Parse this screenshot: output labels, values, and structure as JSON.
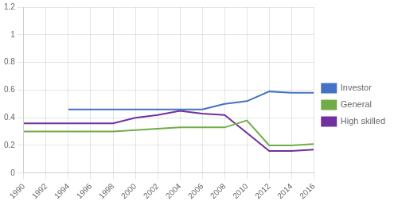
{
  "chart_data": {
    "type": "line",
    "x": [
      1990,
      1992,
      1994,
      1996,
      1998,
      2000,
      2002,
      2004,
      2006,
      2008,
      2010,
      2012,
      2014,
      2016
    ],
    "series": [
      {
        "name": "Investor",
        "color": "#4472C4",
        "values": [
          null,
          null,
          0.46,
          0.46,
          0.46,
          0.46,
          0.46,
          0.46,
          0.46,
          0.5,
          0.52,
          0.59,
          0.58,
          0.58
        ]
      },
      {
        "name": "General",
        "color": "#70AD47",
        "values": [
          0.3,
          0.3,
          0.3,
          0.3,
          0.3,
          0.31,
          0.32,
          0.33,
          0.33,
          0.33,
          0.38,
          0.2,
          0.2,
          0.21
        ]
      },
      {
        "name": "High skilled",
        "color": "#7030A0",
        "values": [
          0.36,
          0.36,
          0.36,
          0.36,
          0.36,
          0.4,
          0.42,
          0.45,
          0.43,
          0.42,
          0.29,
          0.16,
          0.16,
          0.17
        ]
      }
    ],
    "xlim": [
      1990,
      2016
    ],
    "xticks": [
      1990,
      1992,
      1994,
      1996,
      1998,
      2000,
      2002,
      2004,
      2006,
      2008,
      2010,
      2012,
      2014,
      2016
    ],
    "ylim": [
      0,
      1.2
    ],
    "yticks": [
      0,
      0.2,
      0.4,
      0.6,
      0.8,
      1,
      1.2
    ],
    "grid": true,
    "legend": "right"
  }
}
